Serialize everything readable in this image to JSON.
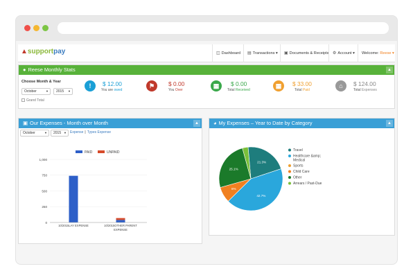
{
  "nav": {
    "logo_brand": "support",
    "logo_accent": "pay",
    "items": [
      {
        "label": "Dashboard",
        "icon": "dashboard-icon"
      },
      {
        "label": "Transactions ▾",
        "icon": "transactions-icon"
      },
      {
        "label": "Documents & Receipts",
        "icon": "documents-icon"
      },
      {
        "label": "Account ▾",
        "icon": "gear-icon"
      }
    ],
    "welcome_label": "Welcome:",
    "welcome_user": "Reese ▾"
  },
  "monthly_stats": {
    "title": "Reese Monthly Stats",
    "choose_label": "Choose Month & Year",
    "month": "October",
    "year": "2015",
    "grand_total_label": "Grand Total",
    "stats": [
      {
        "value": "$ 12.00",
        "label_prefix": "You are ",
        "label_hl": "owed",
        "color": "#1a9fd6"
      },
      {
        "value": "$ 0.00",
        "label_prefix": "You ",
        "label_hl": "Over",
        "color": "#c0392b"
      },
      {
        "value": "$ 0.00",
        "label_prefix": "Total ",
        "label_hl": "Received",
        "color": "#3aa84a"
      },
      {
        "value": "$ 33.00",
        "label_prefix": "Total ",
        "label_hl": "Paid",
        "color": "#f0a030"
      },
      {
        "value": "$ 124.00",
        "label_prefix": "Total ",
        "label_hl": "Expenses",
        "color": "#999999"
      }
    ]
  },
  "expenses_panel": {
    "title": "Our Expenses - Month over Month",
    "month": "October",
    "year": "2015",
    "link_expense": "Expense",
    "link_sep": "||",
    "link_types": "Types Expense",
    "legend_paid": "PAID",
    "legend_unpaid": "UNPAID"
  },
  "category_panel": {
    "title": "My Expenses – Year to Date by Category"
  },
  "chart_data": [
    {
      "type": "bar",
      "categories": [
        "10/2015|LAY EXPENSE",
        "10/2015|OTHER PARENT EXPENSE"
      ],
      "series": [
        {
          "name": "PAID",
          "values": [
            740,
            40
          ]
        },
        {
          "name": "UNPAID",
          "values": [
            0,
            30
          ]
        }
      ],
      "yticks": [
        "0",
        "250",
        "500",
        "750",
        "1,000"
      ],
      "ylim": [
        0,
        1000
      ],
      "legend": "top"
    },
    {
      "type": "pie",
      "labels": [
        "Travel",
        "Healthcare &amp; Medical",
        "Sports",
        "Child Care",
        "Other",
        "Arrears / Past-Due"
      ],
      "values": [
        21.3,
        42.7,
        0,
        8.0,
        25.1,
        2.9
      ],
      "slice_labels": [
        "21.3%",
        "42.7%",
        "",
        "8%",
        "25.1%",
        ""
      ],
      "colors": [
        "#1e7d7d",
        "#2aa7dc",
        "#f0a030",
        "#f08020",
        "#1b7a2a",
        "#7bbf3a"
      ],
      "legend": "right"
    }
  ]
}
